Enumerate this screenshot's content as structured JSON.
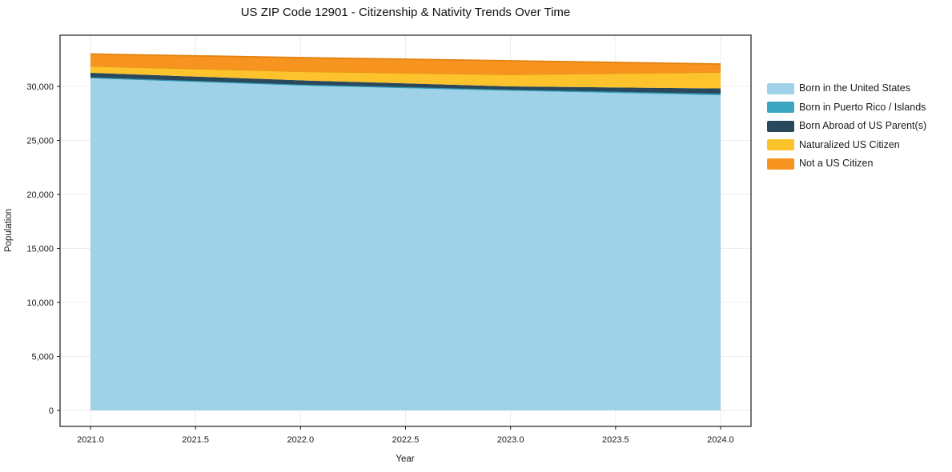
{
  "page": {
    "background": "#ffffff"
  },
  "chart_data": {
    "type": "area",
    "title": "US ZIP Code 12901 - Citizenship & Nativity Trends Over Time",
    "xlabel": "Year",
    "ylabel": "Population",
    "x": [
      2021,
      2022,
      2023,
      2024
    ],
    "series": [
      {
        "name": "Born in the United States",
        "color": "#9fd2e8",
        "edge": null,
        "values": [
          30740,
          30070,
          29590,
          29180
        ]
      },
      {
        "name": "Born in Puerto Rico / Islands",
        "color": "#3ba6c1",
        "edge": "#2e8fa8",
        "values": [
          110,
          110,
          110,
          150
        ]
      },
      {
        "name": "Born Abroad of US Parent(s)",
        "color": "#29485c",
        "edge": null,
        "values": [
          410,
          380,
          300,
          480
        ]
      },
      {
        "name": "Naturalized US Citizen",
        "color": "#fcc32d",
        "edge": "#e89417",
        "values": [
          630,
          840,
          1110,
          1520
        ]
      },
      {
        "name": "Not a US Citizen",
        "color": "#f7941f",
        "edge": "#e5810f",
        "values": [
          1110,
          1260,
          1260,
          740
        ]
      }
    ],
    "totals": [
      33000,
      32660,
      32370,
      32070
    ],
    "xlim": [
      2020.855,
      2024.145
    ],
    "ylim": [
      -1480,
      34740
    ],
    "x_ticks": {
      "values": [
        2021.0,
        2021.5,
        2022.0,
        2022.5,
        2023.0,
        2023.5,
        2024.0
      ],
      "labels": [
        "2021.0",
        "2021.5",
        "2022.0",
        "2022.5",
        "2023.0",
        "2023.5",
        "2024.0"
      ]
    },
    "y_ticks": {
      "values": [
        0,
        5000,
        10000,
        15000,
        20000,
        25000,
        30000
      ],
      "labels": [
        "0",
        "5,000",
        "10,000",
        "15,000",
        "20,000",
        "25,000",
        "30,000"
      ]
    },
    "grid": true,
    "grid_color": "#ececec",
    "frame_color": "#1a1a1a",
    "legend_position": "center right outside"
  }
}
